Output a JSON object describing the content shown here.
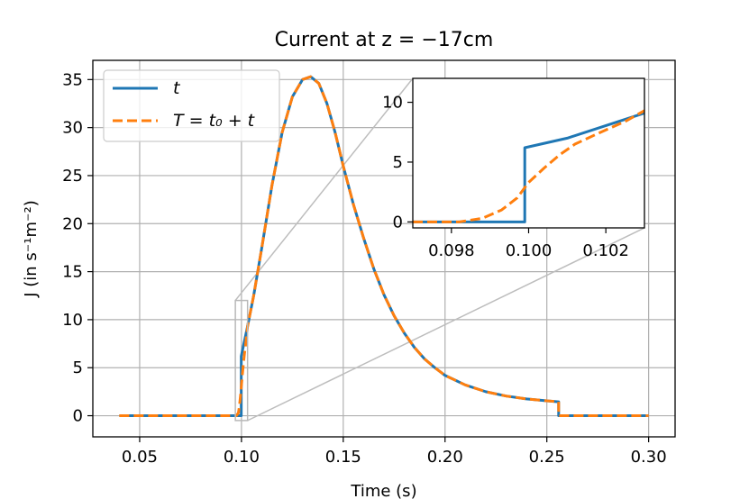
{
  "chart_data": [
    {
      "type": "line",
      "title": "Current at z = −17cm",
      "xlabel": "Time (s)",
      "ylabel": "J (in s⁻¹m⁻²)",
      "xlim": [
        0.027,
        0.313
      ],
      "ylim": [
        -2.2,
        37
      ],
      "xticks": [
        0.05,
        0.1,
        0.15,
        0.2,
        0.25,
        0.3
      ],
      "xtick_labels": [
        "0.05",
        "0.10",
        "0.15",
        "0.20",
        "0.25",
        "0.30"
      ],
      "yticks": [
        0,
        5,
        10,
        15,
        20,
        25,
        30,
        35
      ],
      "ytick_labels": [
        "0",
        "5",
        "10",
        "15",
        "20",
        "25",
        "30",
        "35"
      ],
      "grid": true,
      "legend_position": "upper-left",
      "series": [
        {
          "name": "t",
          "color": "#1f77b4",
          "style": "solid",
          "x": [
            0.04,
            0.0999,
            0.0999,
            0.103,
            0.106,
            0.11,
            0.115,
            0.12,
            0.125,
            0.13,
            0.134,
            0.138,
            0.142,
            0.146,
            0.15,
            0.155,
            0.16,
            0.165,
            0.17,
            0.175,
            0.18,
            0.185,
            0.19,
            0.195,
            0.2,
            0.21,
            0.22,
            0.23,
            0.24,
            0.25,
            0.2558,
            0.2558,
            0.3
          ],
          "y": [
            0,
            0,
            6.2,
            9.3,
            12.5,
            17.5,
            24,
            29.5,
            33.2,
            35,
            35.3,
            34.6,
            32.5,
            29.5,
            26,
            22,
            18.5,
            15.3,
            12.6,
            10.4,
            8.6,
            7.1,
            5.9,
            5.0,
            4.2,
            3.2,
            2.5,
            2.05,
            1.75,
            1.55,
            1.45,
            0,
            0
          ]
        },
        {
          "name": "T = t₀ + t",
          "color": "#ff7f0e",
          "style": "dashed",
          "x": [
            0.04,
            0.0975,
            0.0985,
            0.099,
            0.0995,
            0.1,
            0.1005,
            0.101,
            0.1015,
            0.102,
            0.103,
            0.106,
            0.11,
            0.115,
            0.12,
            0.125,
            0.13,
            0.134,
            0.138,
            0.142,
            0.146,
            0.15,
            0.155,
            0.16,
            0.165,
            0.17,
            0.175,
            0.18,
            0.185,
            0.19,
            0.195,
            0.2,
            0.21,
            0.22,
            0.23,
            0.24,
            0.25,
            0.2558,
            0.2558,
            0.3
          ],
          "y": [
            0,
            0,
            0.3,
            1.0,
            2.0,
            3.2,
            4.4,
            5.5,
            6.5,
            7.3,
            9.3,
            12.5,
            17.5,
            24,
            29.5,
            33.2,
            35,
            35.3,
            34.6,
            32.5,
            29.5,
            26,
            22,
            18.5,
            15.3,
            12.6,
            10.4,
            8.6,
            7.1,
            5.9,
            5.0,
            4.2,
            3.2,
            2.5,
            2.05,
            1.75,
            1.55,
            1.45,
            0,
            0
          ]
        }
      ],
      "zoom_box": {
        "xlim": [
          0.097,
          0.103
        ],
        "ylim": [
          -0.5,
          12
        ]
      }
    },
    {
      "type": "line",
      "title": "",
      "xlabel": "",
      "ylabel": "",
      "xlim": [
        0.097,
        0.103
      ],
      "ylim": [
        -0.5,
        12
      ],
      "xticks": [
        0.098,
        0.1,
        0.102
      ],
      "xtick_labels": [
        "0.098",
        "0.100",
        "0.102"
      ],
      "yticks": [
        0,
        5,
        10
      ],
      "ytick_labels": [
        "0",
        "5",
        "10"
      ],
      "grid": false,
      "series": [
        {
          "color": "#1f77b4",
          "style": "solid",
          "x": [
            0.097,
            0.0999,
            0.0999,
            0.101,
            0.103
          ],
          "y": [
            0,
            0,
            6.2,
            7.0,
            9.1
          ]
        },
        {
          "color": "#ff7f0e",
          "style": "dashed",
          "x": [
            0.097,
            0.0982,
            0.0988,
            0.0993,
            0.0997,
            0.1,
            0.1004,
            0.1008,
            0.1012,
            0.1018,
            0.1025,
            0.103
          ],
          "y": [
            0,
            0,
            0.3,
            1.0,
            2.0,
            3.3,
            4.5,
            5.6,
            6.5,
            7.4,
            8.4,
            9.3
          ]
        }
      ]
    }
  ],
  "legend": {
    "entries": [
      {
        "label": "t",
        "color": "#1f77b4",
        "style": "solid"
      },
      {
        "label": "T = t₀ + t",
        "color": "#ff7f0e",
        "style": "dashed"
      }
    ]
  }
}
